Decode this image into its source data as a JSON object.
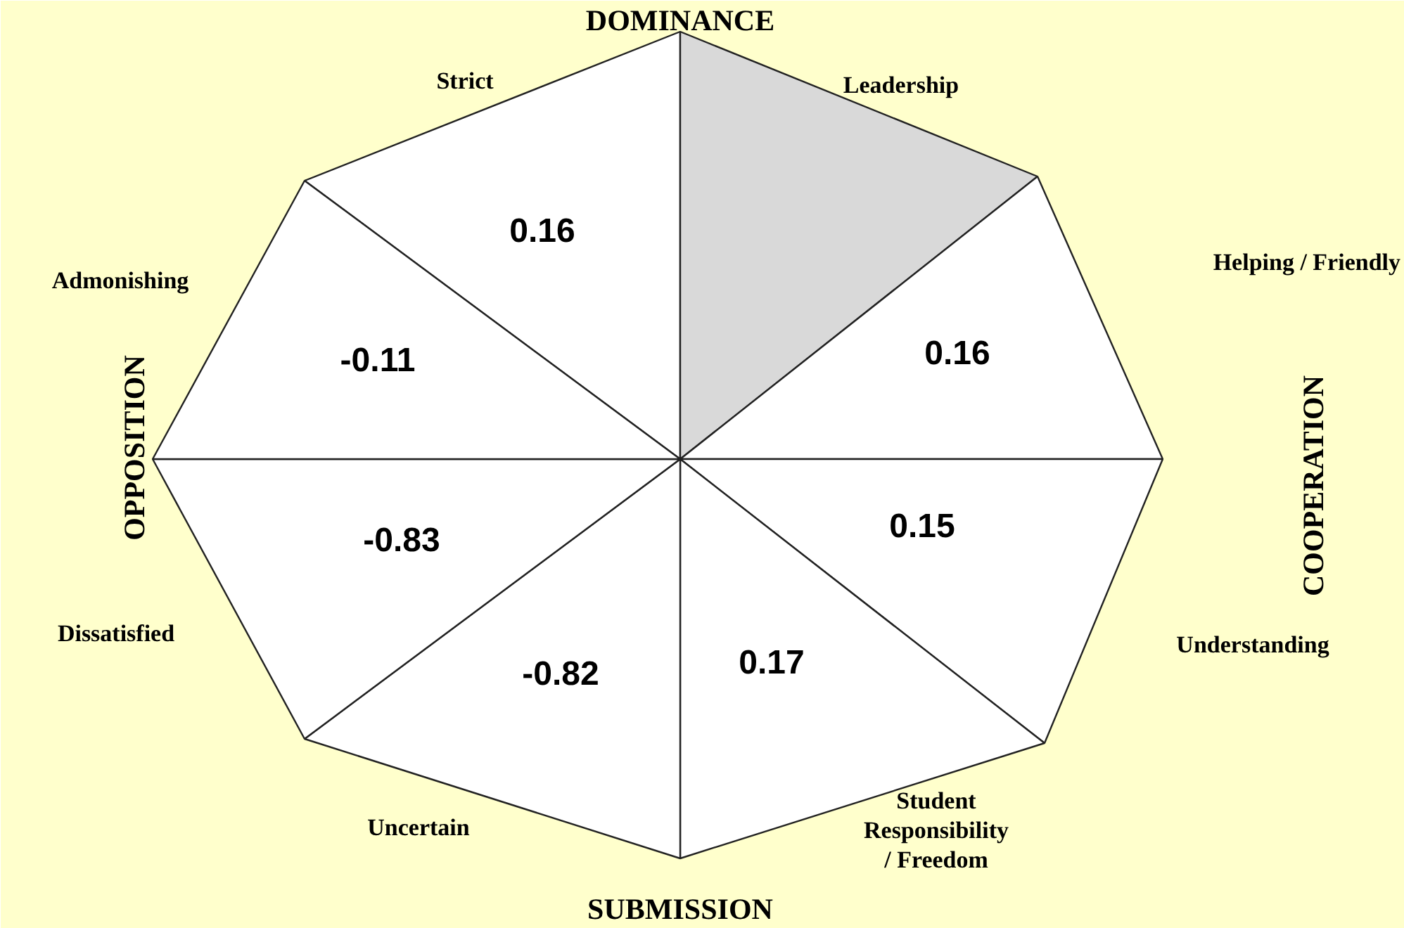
{
  "chart_data": {
    "type": "other",
    "categories": [
      "Strict",
      "Leadership",
      "Helping / Friendly",
      "Understanding",
      "Student\nResponsibility\n/ Freedom",
      "Uncertain",
      "Dissatisfied",
      "Admonishing"
    ],
    "values": [
      0.16,
      null,
      0.16,
      0.15,
      0.17,
      -0.82,
      -0.83,
      -0.11
    ],
    "colors": [
      "#ffffff",
      "#d9d9d9",
      "#ffffff",
      "#ffffff",
      "#ffffff",
      "#ffffff",
      "#ffffff",
      "#ffffff"
    ],
    "data_labels": true,
    "annotations": [
      "DOMINANCE",
      "COOPERATION",
      "SUBMISSION",
      "OPPOSITION"
    ]
  }
}
